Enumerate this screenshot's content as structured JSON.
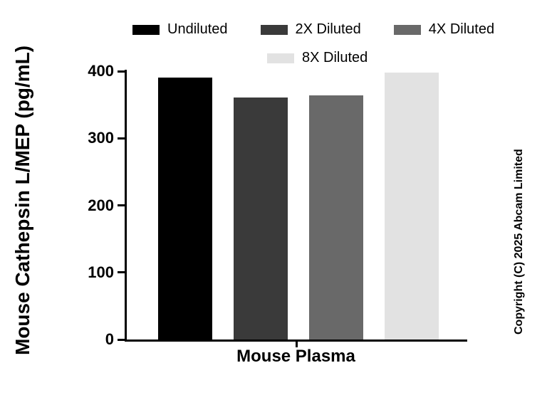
{
  "chart_data": {
    "type": "bar",
    "title": "",
    "categories": [
      "Mouse Plasma"
    ],
    "series": [
      {
        "name": "Undiluted",
        "color": "#000000",
        "values": [
          390
        ]
      },
      {
        "name": "2X Diluted",
        "color": "#3a3a3a",
        "values": [
          361
        ]
      },
      {
        "name": "4X Diluted",
        "color": "#696969",
        "values": [
          364
        ]
      },
      {
        "name": "8X Diluted",
        "color": "#e2e2e2",
        "values": [
          398
        ]
      }
    ],
    "xlabel": "Mouse Plasma",
    "ylabel": "Mouse Cathepsin L/MEP (pg/mL)",
    "ylim": [
      0,
      400
    ],
    "yticks": [
      0,
      100,
      200,
      300,
      400
    ],
    "grid": false,
    "legend_position": "top"
  },
  "copyright": "Copyright (C) 2025 Abcam Limited"
}
